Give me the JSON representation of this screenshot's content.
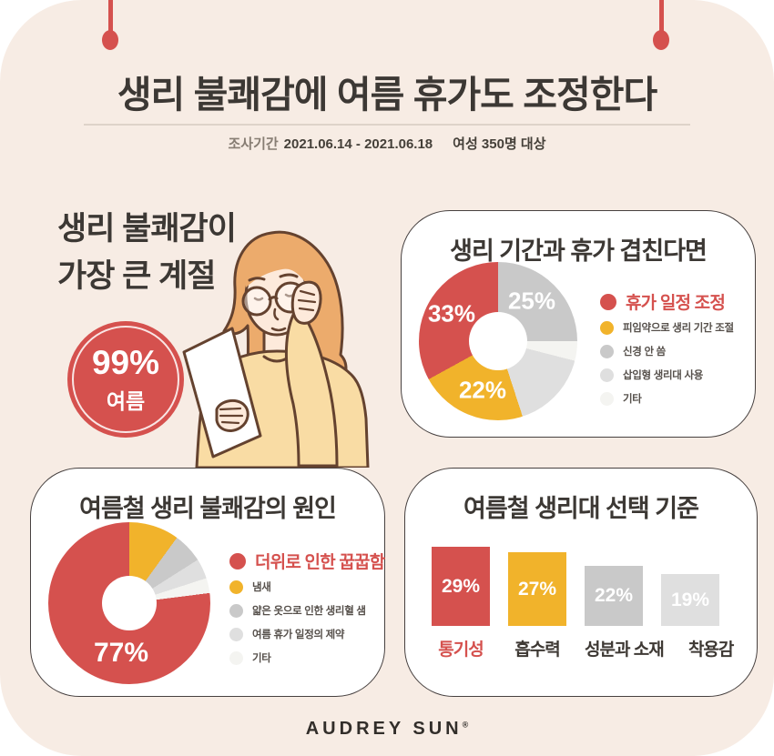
{
  "header": {
    "title": "생리 불쾌감에 여름 휴가도 조정한다",
    "survey_label": "조사기간",
    "survey_period": "2021.06.14 - 2021.06.18",
    "survey_target": "여성 350명 대상"
  },
  "season_callout": {
    "heading_line1": "생리 불쾌감이",
    "heading_line2": "가장 큰 계절",
    "percent": "99%",
    "season": "여름"
  },
  "footer": {
    "brand": "AUDREY SUN",
    "mark": "®"
  },
  "colors": {
    "background": "#f7ece4",
    "card_bg": "#ffffff",
    "card_border": "#474140",
    "red": "#d5514e",
    "yellow": "#f1b32b",
    "gray": "#c9c9c9",
    "gray_light": "#dfdfdf",
    "gray_faint": "#f4f4f1",
    "text_dark": "#3c3834",
    "text_gray": "#877d73",
    "legend_text": "#56504b",
    "illustration_hair": "#ecab6c",
    "illustration_skin": "#fdeadb",
    "illustration_sweater": "#f9dca4",
    "illustration_outline": "#64422f"
  },
  "chart_data": [
    {
      "type": "donut",
      "title": "생리 기간과 휴가 겹친다면",
      "legend_position": "right",
      "slices": [
        {
          "label": "휴가 일정 조정",
          "value": 33,
          "pct_label": "33%",
          "color": "red",
          "emphasis": true
        },
        {
          "label": "피임약으로 생리 기간 조절",
          "value": 22,
          "pct_label": "22%",
          "color": "yellow"
        },
        {
          "label": "신경 안 씀",
          "value": 25,
          "pct_label": "25%",
          "color": "gray"
        },
        {
          "label": "삽입형 생리대 사용",
          "value": 16,
          "pct_label": "",
          "color": "gray_light"
        },
        {
          "label": "기타",
          "value": 4,
          "pct_label": "",
          "color": "gray_faint"
        }
      ],
      "draw_order_clockwise_from_top": [
        2,
        4,
        3,
        1,
        0
      ]
    },
    {
      "type": "donut",
      "title": "여름철 생리 불쾌감의 원인",
      "legend_position": "right",
      "slices": [
        {
          "label": "더위로 인한 꿉꿉함",
          "value": 77,
          "pct_label": "77%",
          "color": "red",
          "emphasis": true
        },
        {
          "label": "냄새",
          "value": 10,
          "pct_label": "",
          "color": "yellow"
        },
        {
          "label": "얇은 옷으로 인한 생리혈 샘",
          "value": 6,
          "pct_label": "",
          "color": "gray"
        },
        {
          "label": "여름 휴가 일정의 제약",
          "value": 4,
          "pct_label": "",
          "color": "gray_light"
        },
        {
          "label": "기타",
          "value": 3,
          "pct_label": "",
          "color": "gray_faint"
        }
      ],
      "draw_order_clockwise_from_top": [
        1,
        2,
        3,
        4,
        0
      ]
    },
    {
      "type": "bar",
      "title": "여름철 생리대 선택 기준",
      "categories": [
        "통기성",
        "흡수력",
        "성분과 소재",
        "착용감"
      ],
      "values": [
        29,
        27,
        22,
        19
      ],
      "value_labels": [
        "29%",
        "27%",
        "22%",
        "19%"
      ],
      "bar_colors": [
        "red",
        "yellow",
        "gray",
        "gray_light"
      ],
      "emphasis_category_index": 0,
      "ylim": [
        0,
        29
      ]
    }
  ]
}
